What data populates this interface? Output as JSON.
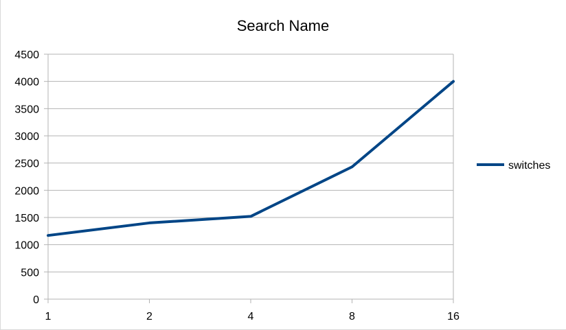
{
  "chart_data": {
    "type": "line",
    "title": "Search Name",
    "xlabel": "",
    "ylabel": "",
    "categories": [
      "1",
      "2",
      "4",
      "8",
      "16"
    ],
    "ylim": [
      0,
      4500
    ],
    "yticks": [
      0,
      500,
      1000,
      1500,
      2000,
      2500,
      3000,
      3500,
      4000,
      4500
    ],
    "grid": true,
    "legend_position": "right",
    "series": [
      {
        "name": "switches",
        "values": [
          1170,
          1400,
          1520,
          2430,
          4000
        ],
        "color": "#004586"
      }
    ]
  }
}
